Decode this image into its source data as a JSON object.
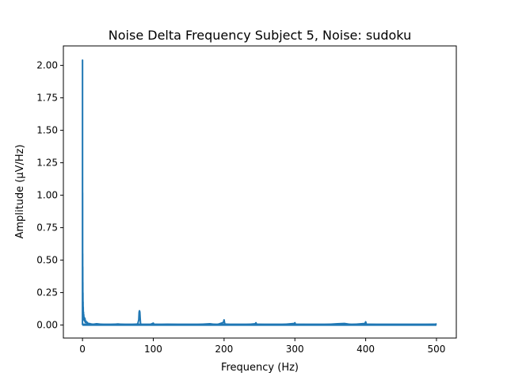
{
  "chart_data": {
    "type": "line",
    "title": "Noise Delta Frequency Subject 5, Noise: sudoku",
    "xlabel": "Frequency (Hz)",
    "ylabel": "Amplitude (µV/Hz)",
    "xlim": [
      -27,
      528
    ],
    "ylim": [
      -0.1,
      2.15
    ],
    "xticks": [
      0,
      100,
      200,
      300,
      400,
      500
    ],
    "xtick_labels": [
      "0",
      "100",
      "200",
      "300",
      "400",
      "500"
    ],
    "yticks": [
      0.0,
      0.25,
      0.5,
      0.75,
      1.0,
      1.25,
      1.5,
      1.75,
      2.0
    ],
    "ytick_labels": [
      "0.00",
      "0.25",
      "0.50",
      "0.75",
      "1.00",
      "1.25",
      "1.50",
      "1.75",
      "2.00"
    ],
    "grid": false,
    "series": [
      {
        "color": "#1f77b4",
        "x": [
          0,
          0.05,
          0.1,
          0.15,
          0.2,
          0.25,
          0.3,
          0.35,
          0.4,
          0.45,
          0.5,
          0.6,
          0.7,
          0.8,
          0.9,
          1.0,
          1.2,
          1.4,
          1.6,
          1.8,
          2.0,
          2.5,
          3.0,
          3.5,
          4.0,
          5.0,
          6.0,
          7.0,
          8.0,
          10.0,
          12.0,
          15.0,
          20.0,
          30.0,
          40.0,
          50.0,
          60.0,
          70.0,
          78.0,
          79.5,
          80.0,
          80.5,
          81.0,
          81.5,
          82.0,
          83.5,
          85.0,
          90.0,
          95.0,
          100.0,
          101.0,
          110.0,
          120.0,
          140.0,
          160.0,
          180.0,
          190.0,
          199.0,
          200.0,
          201.0,
          210.0,
          230.0,
          244.0,
          245.0,
          246.0,
          260.0,
          280.0,
          299.0,
          300.0,
          301.0,
          320.0,
          340.0,
          360.0,
          370.0,
          380.0,
          399.0,
          400.0,
          401.0,
          420.0,
          440.0,
          460.0,
          480.0,
          499.0,
          500.0
        ],
        "y": [
          0.0,
          2.04,
          0.2,
          1.02,
          0.3,
          0.55,
          0.2,
          0.45,
          0.28,
          0.33,
          0.15,
          0.25,
          0.12,
          0.18,
          0.08,
          0.14,
          0.06,
          0.1,
          0.05,
          0.08,
          0.04,
          0.06,
          0.03,
          0.05,
          0.02,
          0.03,
          0.015,
          0.02,
          0.01,
          0.012,
          0.008,
          0.006,
          0.01,
          0.004,
          0.004,
          0.008,
          0.004,
          0.004,
          0.008,
          0.04,
          0.1,
          0.11,
          0.1,
          0.05,
          0.01,
          0.004,
          0.004,
          0.003,
          0.003,
          0.015,
          0.005,
          0.003,
          0.006,
          0.003,
          0.003,
          0.01,
          0.003,
          0.02,
          0.04,
          0.008,
          0.003,
          0.003,
          0.01,
          0.018,
          0.006,
          0.003,
          0.003,
          0.012,
          0.018,
          0.005,
          0.003,
          0.003,
          0.01,
          0.012,
          0.004,
          0.012,
          0.025,
          0.006,
          0.003,
          0.003,
          0.003,
          0.003,
          0.006,
          0.012
        ]
      }
    ]
  }
}
